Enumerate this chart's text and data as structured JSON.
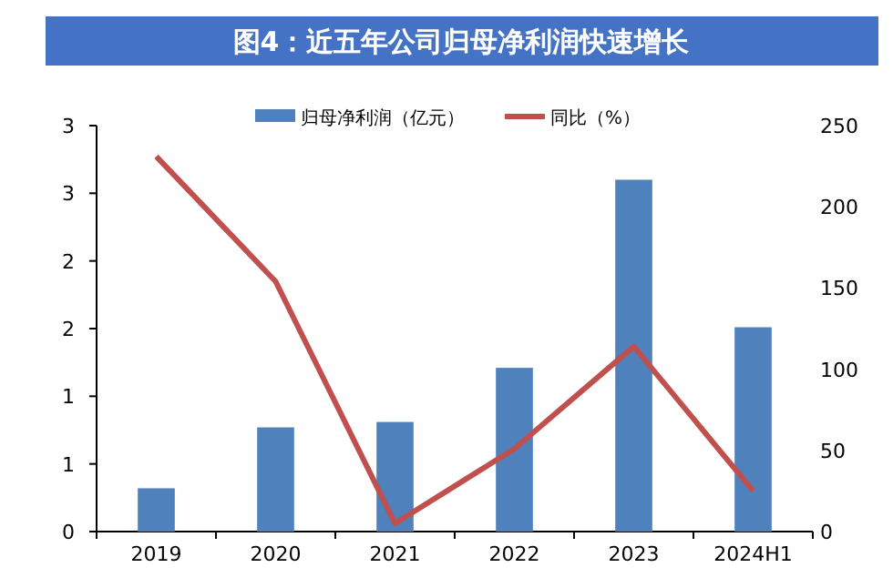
{
  "chart_data": {
    "type": "bar",
    "title": "图4：近五年公司归母净利润快速增长",
    "categories": [
      "2019",
      "2020",
      "2021",
      "2022",
      "2023",
      "2024H1"
    ],
    "series": [
      {
        "name": "归母净利润（亿元）",
        "color": "#4f81bd",
        "values": [
          0.32,
          0.77,
          0.81,
          1.21,
          2.6,
          1.51
        ]
      },
      {
        "name": "同比（%）",
        "type": "line",
        "axis": "y2",
        "color": "#c0504d",
        "values": [
          231,
          154,
          5,
          51,
          114,
          25
        ]
      }
    ],
    "ylim": [
      0,
      3
    ],
    "yticks": [
      0,
      {
        "value": 0.5,
        "label": "1"
      },
      1,
      {
        "value": 1.5,
        "label": "2"
      },
      2,
      {
        "value": 2.5,
        "label": "3"
      },
      3
    ],
    "y2lim": [
      0,
      250
    ],
    "y2ticks": [
      0,
      50,
      100,
      150,
      200,
      250
    ],
    "legend": "top",
    "grid": false
  }
}
